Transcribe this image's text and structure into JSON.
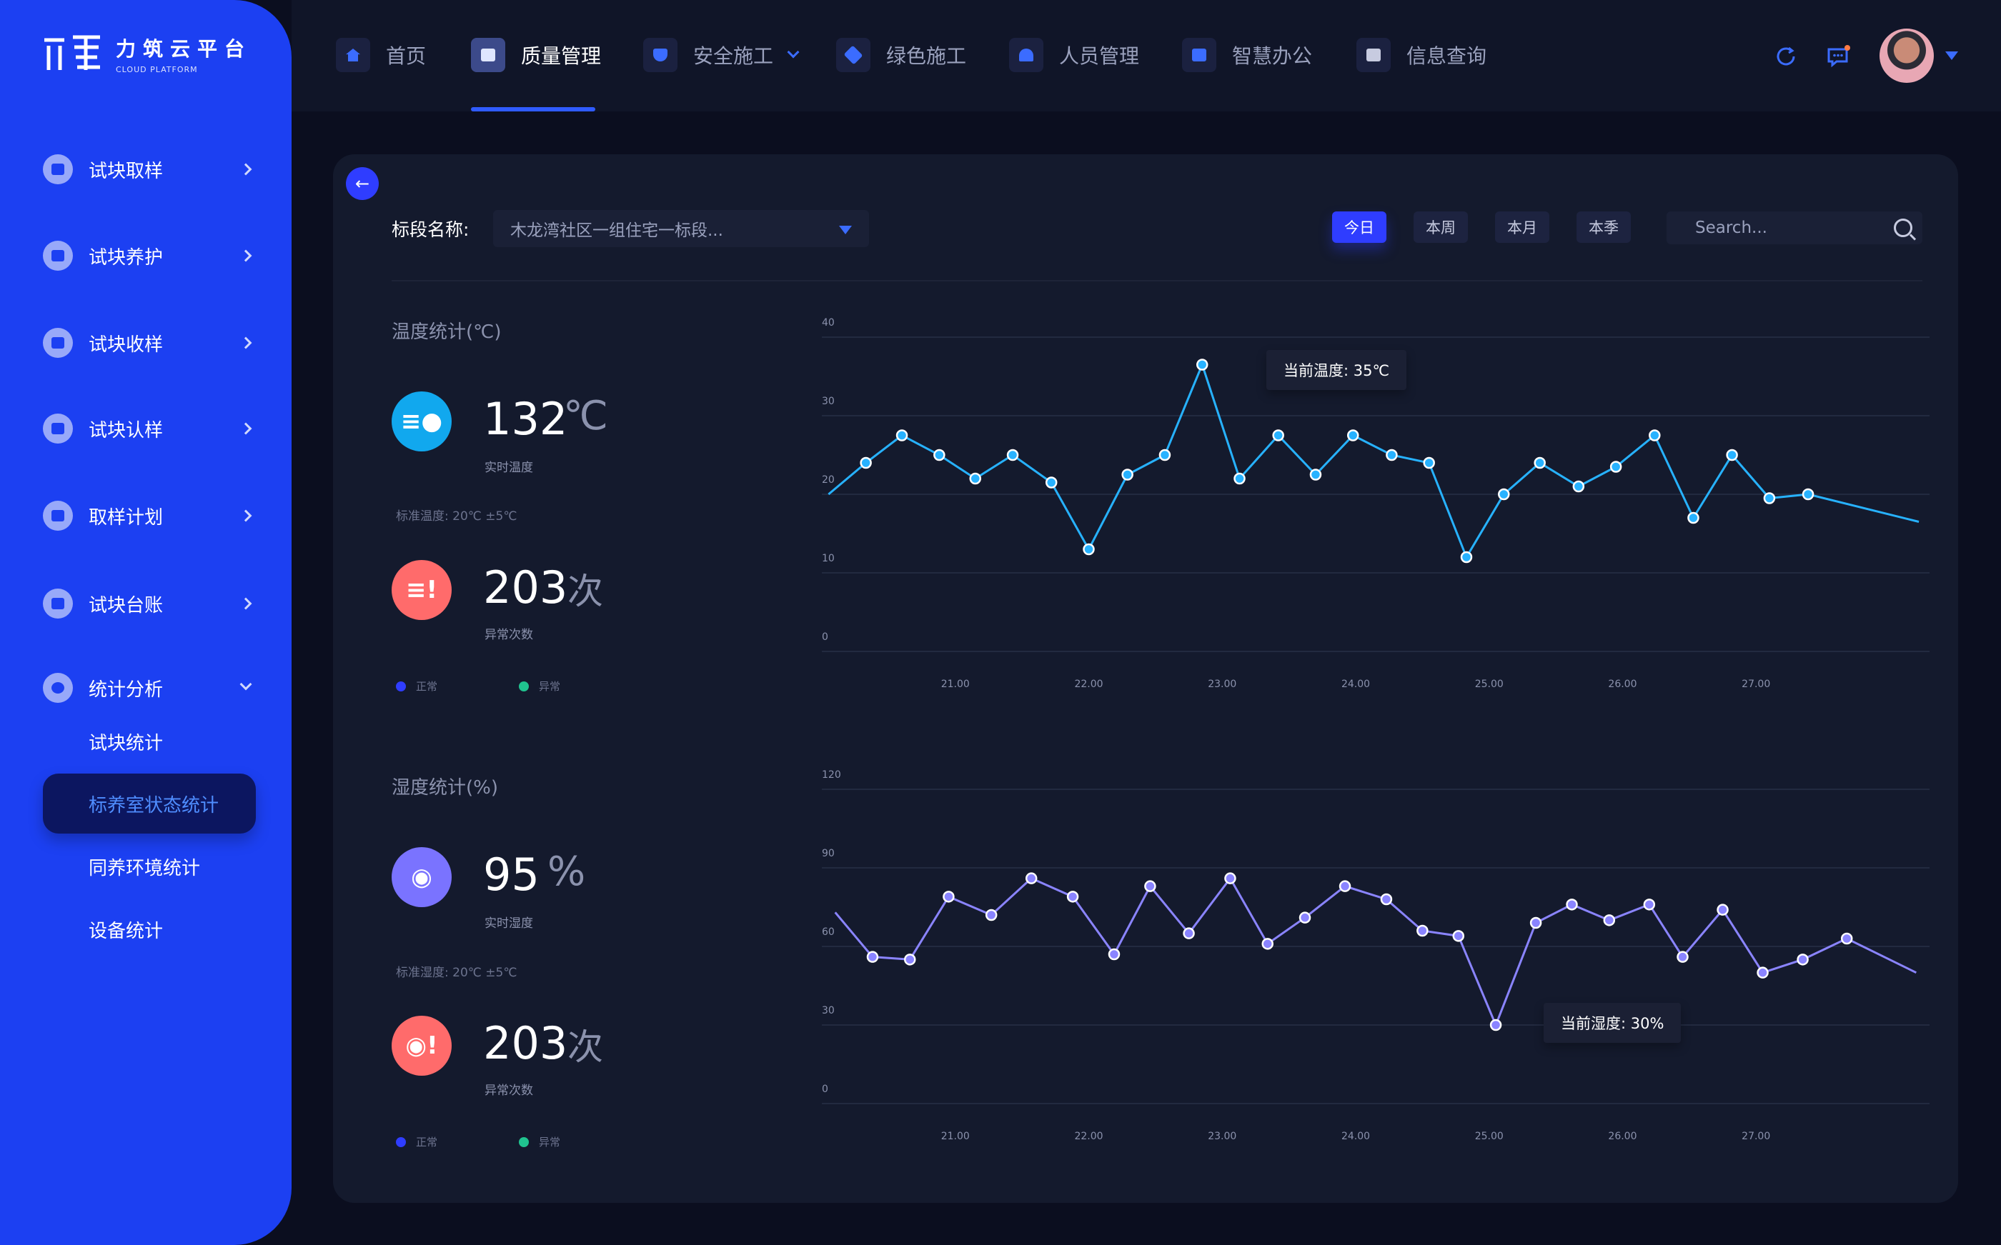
{
  "logo": {
    "title": "力筑云平台",
    "subtitle": "CLOUD PLATFORM"
  },
  "sidebar": {
    "items": [
      {
        "label": "试块取样"
      },
      {
        "label": "试块养护"
      },
      {
        "label": "试块收样"
      },
      {
        "label": "试块认样"
      },
      {
        "label": "取样计划"
      },
      {
        "label": "试块台账"
      },
      {
        "label": "统计分析"
      }
    ],
    "sub_items": [
      {
        "label": "试块统计"
      },
      {
        "label": "标养室状态统计"
      },
      {
        "label": "同养环境统计"
      },
      {
        "label": "设备统计"
      }
    ]
  },
  "tabs": [
    {
      "label": "首页"
    },
    {
      "label": "质量管理"
    },
    {
      "label": "安全施工"
    },
    {
      "label": "绿色施工"
    },
    {
      "label": "人员管理"
    },
    {
      "label": "智慧办公"
    },
    {
      "label": "信息查询"
    }
  ],
  "filters": {
    "segment_label": "标段名称:",
    "segment_value": "木龙湾社区一组住宅一标段...",
    "periods": [
      "今日",
      "本周",
      "本月",
      "本季"
    ],
    "search_placeholder": "Search..."
  },
  "colors": {
    "accent": "#2f3dff",
    "temp_line": "#27b2ff",
    "humid_line": "#8a84ff",
    "alert": "#ff6b6b",
    "normal_dot": "#2f3dff",
    "abnormal_dot": "#20c38f"
  },
  "temperature": {
    "title": "温度统计(℃)",
    "value": "132",
    "unit": "℃",
    "value_caption": "实时温度",
    "standard": "标准温度: 20℃ ±5℃",
    "abnormal_count": "203",
    "abnormal_unit": "次",
    "abnormal_caption": "异常次数",
    "legend_normal": "正常",
    "legend_abnormal": "异常",
    "tooltip": "当前温度: 35℃"
  },
  "humidity": {
    "title": "湿度统计(%)",
    "value": "95",
    "unit": "%",
    "value_caption": "实时湿度",
    "standard": "标准湿度: 20℃ ±5℃",
    "abnormal_count": "203",
    "abnormal_unit": "次",
    "abnormal_caption": "异常次数",
    "legend_normal": "正常",
    "legend_abnormal": "异常",
    "tooltip": "当前湿度: 30%"
  },
  "chart_data": [
    {
      "type": "line",
      "ylim": [
        0,
        40
      ],
      "yticks": [
        "0",
        "10",
        "20",
        "30",
        "40"
      ],
      "xticks": [
        "21.00",
        "22.00",
        "23.00",
        "24.00",
        "25.00",
        "26.00",
        "27.00"
      ],
      "x": [
        20.05,
        20.33,
        20.6,
        20.88,
        21.15,
        21.43,
        21.72,
        22.0,
        22.29,
        22.57,
        22.85,
        23.13,
        23.42,
        23.7,
        23.98,
        24.27,
        24.55,
        24.83,
        25.11,
        25.38,
        25.67,
        25.95,
        26.24,
        26.53,
        26.82,
        27.1,
        27.39,
        27.68,
        27.95,
        28.22
      ],
      "values": [
        20,
        24,
        27.5,
        25,
        22,
        25,
        21.5,
        13,
        22.5,
        25,
        36.5,
        22,
        27.5,
        22.5,
        27.5,
        25,
        24,
        12,
        20,
        24,
        21,
        23.5,
        27.5,
        17,
        25,
        19.5,
        20,
        null,
        null,
        16.5
      ],
      "highlight": {
        "x": 23.15,
        "label": "当前温度: 35℃"
      }
    },
    {
      "type": "line",
      "ylim": [
        0,
        120
      ],
      "yticks": [
        "0",
        "30",
        "60",
        "90",
        "120"
      ],
      "xticks": [
        "21.00",
        "22.00",
        "23.00",
        "24.00",
        "25.00",
        "26.00",
        "27.00"
      ],
      "x": [
        20.1,
        20.38,
        20.66,
        20.95,
        21.27,
        21.57,
        21.88,
        22.19,
        22.46,
        22.75,
        23.06,
        23.34,
        23.62,
        23.92,
        24.23,
        24.5,
        24.77,
        25.05,
        25.35,
        25.62,
        25.9,
        26.2,
        26.45,
        26.75,
        27.05,
        27.35,
        27.68,
        27.95,
        28.2
      ],
      "values": [
        73,
        56,
        55,
        79,
        72,
        86,
        79,
        57,
        83,
        65,
        86,
        61,
        71,
        83,
        78,
        66,
        64,
        30,
        69,
        76,
        70,
        76,
        56,
        74,
        50,
        55,
        63,
        null,
        50
      ],
      "highlight": {
        "x": 25.2,
        "label": "当前湿度: 30%"
      }
    }
  ]
}
